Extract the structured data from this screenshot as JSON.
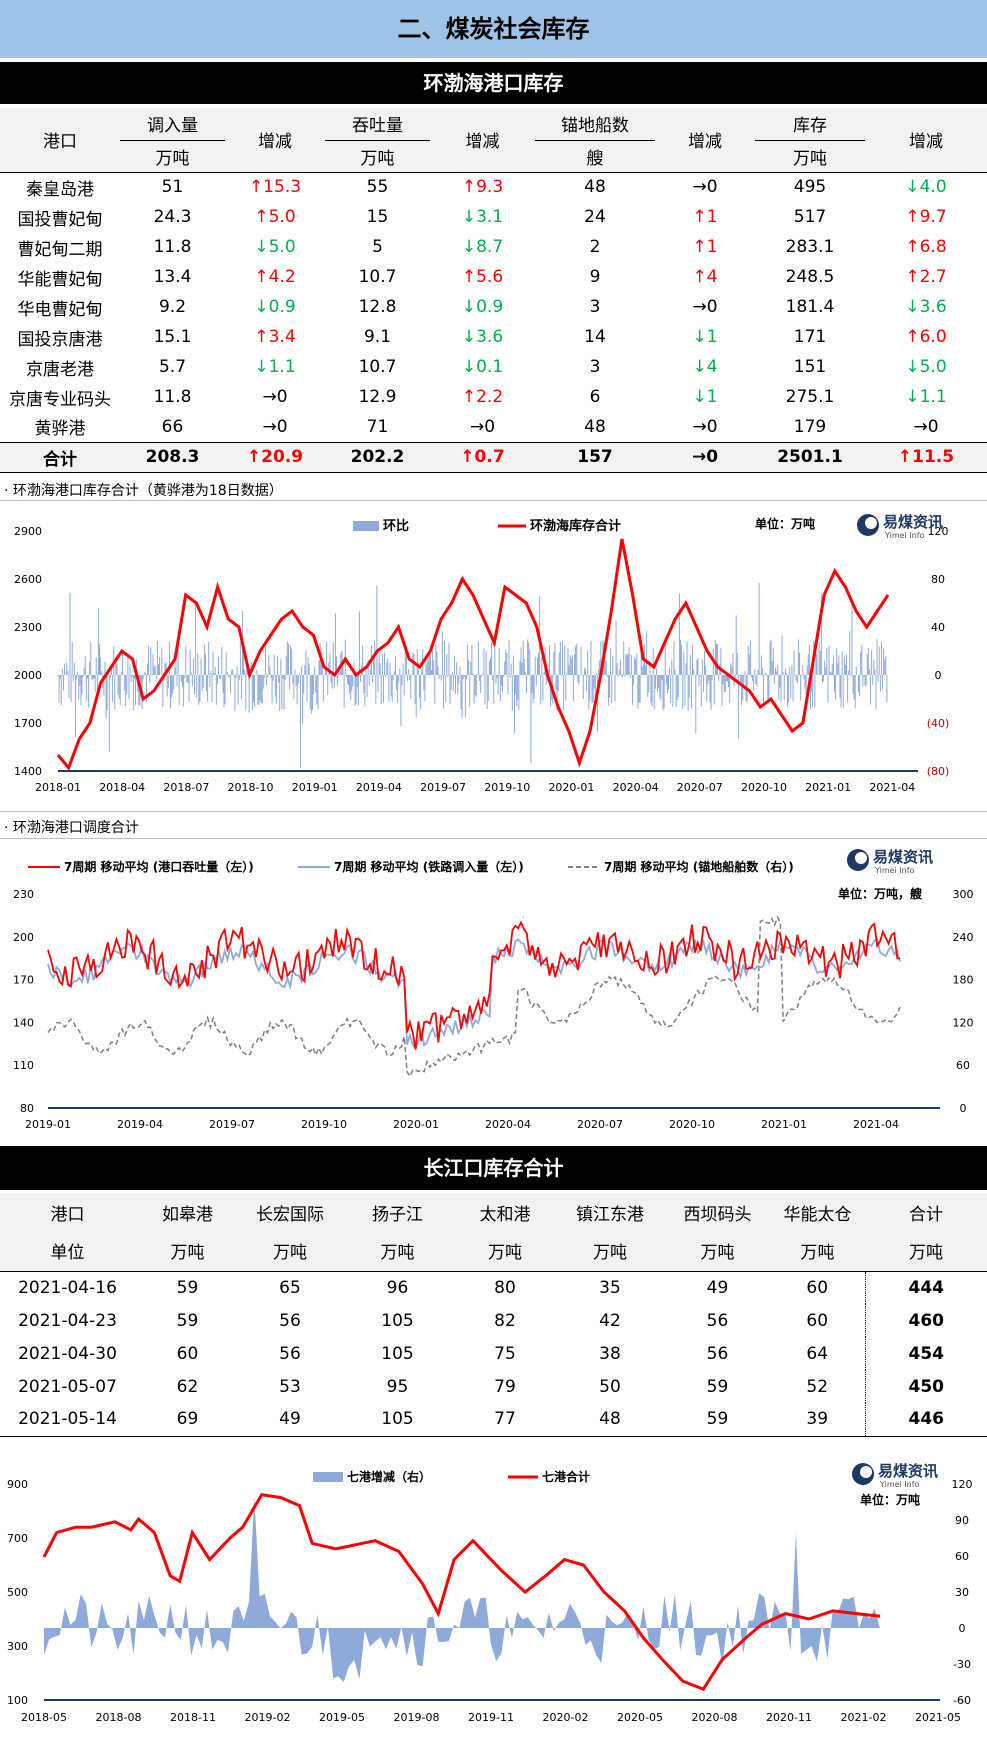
{
  "page_title": "二、煤炭社会库存",
  "bohai": {
    "title": "环渤海港口库存",
    "col_headers": [
      "港口",
      "调入量",
      "增减",
      "吞吐量",
      "增减",
      "锚地船数",
      "增减",
      "库存",
      "增减"
    ],
    "unit_headers": [
      "万吨",
      "万吨",
      "艘",
      "万吨"
    ],
    "rows": [
      {
        "port": "秦皇岛港",
        "in": "51",
        "in_d": "↑15.3",
        "in_dir": "up",
        "tp": "55",
        "tp_d": "↑9.3",
        "tp_dir": "up",
        "ship": "48",
        "ship_d": "→0",
        "ship_dir": "flat",
        "st": "495",
        "st_d": "↓4.0",
        "st_dir": "down"
      },
      {
        "port": "国投曹妃甸",
        "in": "24.3",
        "in_d": "↑5.0",
        "in_dir": "up",
        "tp": "15",
        "tp_d": "↓3.1",
        "tp_dir": "down",
        "ship": "24",
        "ship_d": "↑1",
        "ship_dir": "up",
        "st": "517",
        "st_d": "↑9.7",
        "st_dir": "up"
      },
      {
        "port": "曹妃甸二期",
        "in": "11.8",
        "in_d": "↓5.0",
        "in_dir": "down",
        "tp": "5",
        "tp_d": "↓8.7",
        "tp_dir": "down",
        "ship": "2",
        "ship_d": "↑1",
        "ship_dir": "up",
        "st": "283.1",
        "st_d": "↑6.8",
        "st_dir": "up"
      },
      {
        "port": "华能曹妃甸",
        "in": "13.4",
        "in_d": "↑4.2",
        "in_dir": "up",
        "tp": "10.7",
        "tp_d": "↑5.6",
        "tp_dir": "up",
        "ship": "9",
        "ship_d": "↑4",
        "ship_dir": "up",
        "st": "248.5",
        "st_d": "↑2.7",
        "st_dir": "up"
      },
      {
        "port": "华电曹妃甸",
        "in": "9.2",
        "in_d": "↓0.9",
        "in_dir": "down",
        "tp": "12.8",
        "tp_d": "↓0.9",
        "tp_dir": "down",
        "ship": "3",
        "ship_d": "→0",
        "ship_dir": "flat",
        "st": "181.4",
        "st_d": "↓3.6",
        "st_dir": "down"
      },
      {
        "port": "国投京唐港",
        "in": "15.1",
        "in_d": "↑3.4",
        "in_dir": "up",
        "tp": "9.1",
        "tp_d": "↓3.6",
        "tp_dir": "down",
        "ship": "14",
        "ship_d": "↓1",
        "ship_dir": "down",
        "st": "171",
        "st_d": "↑6.0",
        "st_dir": "up"
      },
      {
        "port": "京唐老港",
        "in": "5.7",
        "in_d": "↓1.1",
        "in_dir": "down",
        "tp": "10.7",
        "tp_d": "↓0.1",
        "tp_dir": "down",
        "ship": "3",
        "ship_d": "↓4",
        "ship_dir": "down",
        "st": "151",
        "st_d": "↓5.0",
        "st_dir": "down"
      },
      {
        "port": "京唐专业码头",
        "in": "11.8",
        "in_d": "→0",
        "in_dir": "flat",
        "tp": "12.9",
        "tp_d": "↑2.2",
        "tp_dir": "up",
        "ship": "6",
        "ship_d": "↓1",
        "ship_dir": "down",
        "st": "275.1",
        "st_d": "↓1.1",
        "st_dir": "down"
      },
      {
        "port": "黄骅港",
        "in": "66",
        "in_d": "→0",
        "in_dir": "flat",
        "tp": "71",
        "tp_d": "→0",
        "tp_dir": "flat",
        "ship": "48",
        "ship_d": "→0",
        "ship_dir": "flat",
        "st": "179",
        "st_d": "→0",
        "st_dir": "flat"
      }
    ],
    "total": {
      "port": "合计",
      "in": "208.3",
      "in_d": "↑20.9",
      "in_dir": "up",
      "tp": "202.2",
      "tp_d": "↑0.7",
      "tp_dir": "up",
      "ship": "157",
      "ship_d": "→0",
      "ship_dir": "flat",
      "st": "2501.1",
      "st_d": "↑11.5",
      "st_dir": "up"
    }
  },
  "caption1": "· 环渤海港口库存合计（黄骅港为18日数据）",
  "caption2": "· 环渤海港口调度合计",
  "brand": {
    "cn": "易煤资讯",
    "en": "Yimei Info"
  },
  "chart1_unit": "单位：万吨",
  "chart2_unit": "单位：万吨，艘",
  "chart3_unit": "单位：万吨",
  "yangtze": {
    "title": "长江口库存合计",
    "headers": [
      "港口",
      "如皋港",
      "长宏国际",
      "扬子江",
      "太和港",
      "镇江东港",
      "西坝码头",
      "华能太仓",
      "合计"
    ],
    "units": [
      "单位",
      "万吨",
      "万吨",
      "万吨",
      "万吨",
      "万吨",
      "万吨",
      "万吨",
      "万吨"
    ],
    "rows": [
      [
        "2021-04-16",
        "59",
        "65",
        "96",
        "80",
        "35",
        "49",
        "60",
        "444"
      ],
      [
        "2021-04-23",
        "59",
        "56",
        "105",
        "82",
        "42",
        "56",
        "60",
        "460"
      ],
      [
        "2021-04-30",
        "60",
        "56",
        "105",
        "75",
        "38",
        "56",
        "64",
        "454"
      ],
      [
        "2021-05-07",
        "62",
        "53",
        "95",
        "79",
        "50",
        "59",
        "52",
        "450"
      ],
      [
        "2021-05-14",
        "69",
        "49",
        "105",
        "77",
        "48",
        "59",
        "39",
        "446"
      ]
    ]
  },
  "colors": {
    "red": "#ff0000",
    "green": "#00b050",
    "bar": "#8eaadb",
    "line2": "#8ea9db",
    "dash": "#7f7f7f"
  },
  "chart_data": [
    {
      "type": "line",
      "series": [
        {
          "name": "环比",
          "kind": "bar",
          "axis": "right"
        },
        {
          "name": "环渤海库存合计",
          "axis": "left"
        }
      ],
      "x_ticks": [
        "2018-01",
        "2018-04",
        "2018-07",
        "2018-10",
        "2019-01",
        "2019-04",
        "2019-07",
        "2019-10",
        "2020-01",
        "2020-04",
        "2020-07",
        "2020-10",
        "2021-01",
        "2021-04"
      ],
      "ylim_left": [
        1400,
        2900
      ],
      "ylim_right": [
        -80,
        120
      ],
      "left_ticks": [
        "1400",
        "1700",
        "2000",
        "2300",
        "2600",
        "2900"
      ],
      "right_ticks": [
        "(80)",
        "(40)",
        "0",
        "40",
        "80",
        "120"
      ],
      "line_points": [
        [
          0,
          1500
        ],
        [
          0.5,
          1420
        ],
        [
          1,
          1600
        ],
        [
          1.5,
          1700
        ],
        [
          2,
          1950
        ],
        [
          2.5,
          2050
        ],
        [
          3,
          2150
        ],
        [
          3.5,
          2100
        ],
        [
          4,
          1850
        ],
        [
          4.5,
          1900
        ],
        [
          5,
          2000
        ],
        [
          5.5,
          2100
        ],
        [
          6,
          2500
        ],
        [
          6.5,
          2450
        ],
        [
          7,
          2300
        ],
        [
          7.5,
          2550
        ],
        [
          8,
          2350
        ],
        [
          8.5,
          2300
        ],
        [
          9,
          2000
        ],
        [
          9.5,
          2150
        ],
        [
          10,
          2250
        ],
        [
          10.5,
          2350
        ],
        [
          11,
          2400
        ],
        [
          11.5,
          2300
        ],
        [
          12,
          2250
        ],
        [
          12.5,
          2050
        ],
        [
          13,
          2000
        ],
        [
          13.5,
          2100
        ],
        [
          14,
          2000
        ],
        [
          14.5,
          2050
        ],
        [
          15,
          2150
        ],
        [
          15.5,
          2200
        ],
        [
          16,
          2300
        ],
        [
          16.5,
          2100
        ],
        [
          17,
          2050
        ],
        [
          17.5,
          2150
        ],
        [
          18,
          2350
        ],
        [
          18.5,
          2450
        ],
        [
          19,
          2600
        ],
        [
          19.5,
          2500
        ],
        [
          20,
          2350
        ],
        [
          20.5,
          2200
        ],
        [
          21,
          2550
        ],
        [
          21.5,
          2500
        ],
        [
          22,
          2450
        ],
        [
          22.5,
          2300
        ],
        [
          23,
          2000
        ],
        [
          23.5,
          1800
        ],
        [
          24,
          1650
        ],
        [
          24.5,
          1450
        ],
        [
          25,
          1650
        ],
        [
          25.5,
          2000
        ],
        [
          26,
          2400
        ],
        [
          26.5,
          2850
        ],
        [
          27,
          2500
        ],
        [
          27.5,
          2100
        ],
        [
          28,
          2050
        ],
        [
          28.5,
          2200
        ],
        [
          29,
          2350
        ],
        [
          29.5,
          2450
        ],
        [
          30,
          2300
        ],
        [
          30.5,
          2150
        ],
        [
          31,
          2050
        ],
        [
          31.5,
          2000
        ],
        [
          32,
          1950
        ],
        [
          32.5,
          1900
        ],
        [
          33,
          1800
        ],
        [
          33.5,
          1850
        ],
        [
          34,
          1750
        ],
        [
          34.5,
          1650
        ],
        [
          35,
          1700
        ],
        [
          35.5,
          2100
        ],
        [
          36,
          2500
        ],
        [
          36.5,
          2650
        ],
        [
          37,
          2550
        ],
        [
          37.5,
          2400
        ],
        [
          38,
          2300
        ],
        [
          38.5,
          2400
        ],
        [
          39,
          2500
        ]
      ],
      "title": ""
    },
    {
      "type": "line",
      "series": [
        {
          "name": "7周期 移动平均 (港口吞吐量（左）)",
          "axis": "left"
        },
        {
          "name": "7周期 移动平均 (铁路调入量（左）)",
          "axis": "left"
        },
        {
          "name": "7周期 移动平均 (锚地船舶数（右）)",
          "axis": "right"
        }
      ],
      "x_ticks": [
        "2019-01",
        "2019-04",
        "2019-07",
        "2019-10",
        "2020-01",
        "2020-04",
        "2020-07",
        "2020-10",
        "2021-01",
        "2021-04"
      ],
      "ylim_left": [
        80,
        230
      ],
      "ylim_right": [
        0,
        300
      ],
      "left_ticks": [
        "80",
        "110",
        "140",
        "170",
        "200",
        "230"
      ],
      "right_ticks": [
        "0",
        "60",
        "120",
        "180",
        "240",
        "300"
      ],
      "title": ""
    },
    {
      "type": "line",
      "series": [
        {
          "name": "七港增减（右）",
          "kind": "area",
          "axis": "right"
        },
        {
          "name": "七港合计",
          "axis": "left"
        }
      ],
      "x_ticks": [
        "2018-05",
        "2018-08",
        "2018-11",
        "2019-02",
        "2019-05",
        "2019-08",
        "2019-11",
        "2020-02",
        "2020-05",
        "2020-08",
        "2020-11",
        "2021-02",
        "2021-05"
      ],
      "ylim_left": [
        100,
        900
      ],
      "ylim_right": [
        -60,
        120
      ],
      "left_ticks": [
        "100",
        "300",
        "500",
        "700",
        "900"
      ],
      "right_ticks": [
        "-60",
        "-30",
        "0",
        "30",
        "60",
        "90",
        "120"
      ],
      "title": ""
    }
  ]
}
